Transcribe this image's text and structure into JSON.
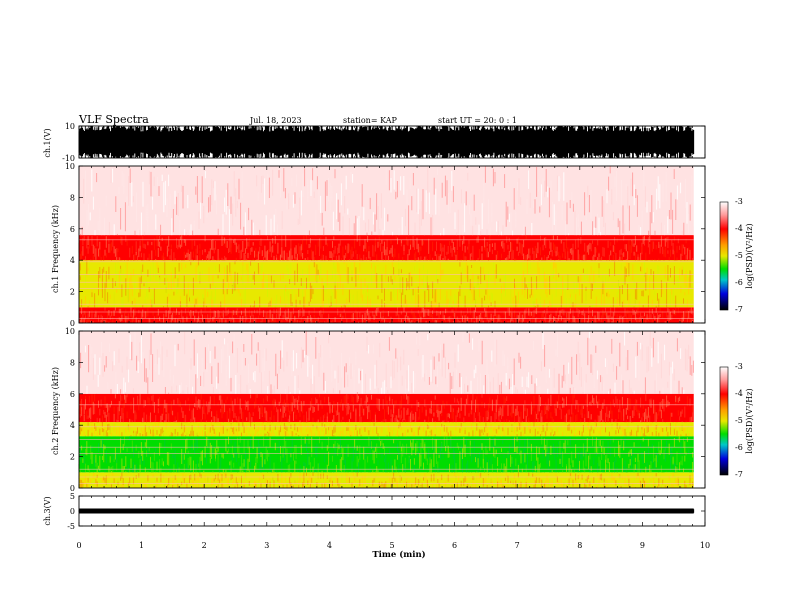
{
  "header": {
    "title": "VLF Spectra",
    "date": "Jul. 18, 2023",
    "station": "station= KAP",
    "start": "start UT =  20: 0 : 1"
  },
  "colors": {
    "spectrogram_low": "#ffffff",
    "spectrogram_mid_red": "#ff0000",
    "spectrogram_yellow": "#e8e800",
    "spectrogram_green": "#00dd00",
    "spectrogram_blue": "#0000cc",
    "spectrogram_black": "#000000"
  },
  "chart_data": [
    {
      "type": "line",
      "name": "ch.1 waveform",
      "ylabel": "ch.1(V)",
      "ylim": [
        -10,
        10
      ],
      "yticks": [
        "10",
        "-10"
      ],
      "xlim": [
        0,
        10
      ],
      "x_data_end": 9.82,
      "description_of_signal": "dense noisy waveform, amplitude about ±10 V"
    },
    {
      "type": "heatmap",
      "name": "ch.1 spectrogram",
      "ylabel": "ch.1 Frequency (kHz)",
      "ylim": [
        0,
        10
      ],
      "yticks": [
        "0",
        "2",
        "4",
        "6",
        "8",
        "10"
      ],
      "xlim": [
        0,
        10
      ],
      "x_data_end": 9.82,
      "bands_kHz": [
        {
          "from": 0,
          "to": 1,
          "level": "red"
        },
        {
          "from": 1,
          "to": 4,
          "level": "yellow"
        },
        {
          "from": 4,
          "to": 5.6,
          "level": "red"
        },
        {
          "from": 5.6,
          "to": 10,
          "level": "white-red"
        }
      ],
      "colorbar": {
        "label": "log(PSD)(V²/Hz)",
        "ticks": [
          "-3",
          "-4",
          "-5",
          "-6",
          "-7"
        ],
        "range": [
          -7,
          -3
        ]
      }
    },
    {
      "type": "heatmap",
      "name": "ch.2 spectrogram",
      "ylabel": "ch.2 Frequency (kHz)",
      "ylim": [
        0,
        10
      ],
      "yticks": [
        "0",
        "2",
        "4",
        "6",
        "8",
        "10"
      ],
      "xlim": [
        0,
        10
      ],
      "x_data_end": 9.82,
      "bands_kHz": [
        {
          "from": 0,
          "to": 1,
          "level": "yellow"
        },
        {
          "from": 1,
          "to": 3.3,
          "level": "green"
        },
        {
          "from": 3.3,
          "to": 4.2,
          "level": "yellow"
        },
        {
          "from": 4.2,
          "to": 6,
          "level": "red"
        },
        {
          "from": 6,
          "to": 10,
          "level": "white-red"
        }
      ],
      "colorbar": {
        "label": "log(PSD)(V²/Hz)",
        "ticks": [
          "-3",
          "-4",
          "-5",
          "-6",
          "-7"
        ],
        "range": [
          -7,
          -3
        ]
      }
    },
    {
      "type": "line",
      "name": "ch.3 waveform",
      "ylabel": "ch.3(V)",
      "ylim": [
        -5,
        5
      ],
      "yticks": [
        "5",
        "0",
        "-5"
      ],
      "xlim": [
        0,
        10
      ],
      "x_data_end": 9.82,
      "description_of_signal": "narrow band of about ±0.6 V around 0"
    }
  ],
  "xaxis": {
    "label": "Time (min)",
    "ticks": [
      "0",
      "1",
      "2",
      "3",
      "4",
      "5",
      "6",
      "7",
      "8",
      "9",
      "10"
    ]
  }
}
